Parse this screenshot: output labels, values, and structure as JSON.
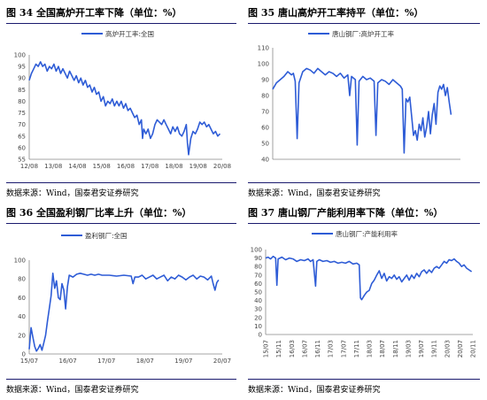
{
  "charts": [
    {
      "title": "图 34  全国高炉开工率下降（单位：%）",
      "source": "数据来源：Wind，国泰君安证券研究",
      "chart_data": {
        "type": "line",
        "series": [
          {
            "name": "高炉开工率:全国",
            "color": "#2e5cd6"
          }
        ],
        "x_ticks": [
          "12/08",
          "13/08",
          "14/08",
          "15/08",
          "16/08",
          "17/08",
          "18/08",
          "19/08",
          "20/08"
        ],
        "y_ticks": [
          55,
          60,
          65,
          70,
          75,
          80,
          85,
          90,
          95,
          100
        ],
        "ylim": [
          55,
          100
        ],
        "xlim": [
          0,
          8.6
        ],
        "points": [
          [
            0,
            89
          ],
          [
            0.1,
            92
          ],
          [
            0.2,
            94
          ],
          [
            0.3,
            96
          ],
          [
            0.4,
            95
          ],
          [
            0.5,
            97
          ],
          [
            0.6,
            95
          ],
          [
            0.7,
            96
          ],
          [
            0.8,
            93
          ],
          [
            0.9,
            95
          ],
          [
            1.0,
            94
          ],
          [
            1.1,
            96
          ],
          [
            1.2,
            93
          ],
          [
            1.3,
            95
          ],
          [
            1.4,
            92
          ],
          [
            1.5,
            94
          ],
          [
            1.6,
            92
          ],
          [
            1.7,
            90
          ],
          [
            1.8,
            93
          ],
          [
            1.9,
            91
          ],
          [
            2.0,
            89
          ],
          [
            2.1,
            91
          ],
          [
            2.2,
            88
          ],
          [
            2.3,
            90
          ],
          [
            2.4,
            87
          ],
          [
            2.5,
            89
          ],
          [
            2.6,
            86
          ],
          [
            2.7,
            87
          ],
          [
            2.8,
            84
          ],
          [
            2.9,
            86
          ],
          [
            3.0,
            83
          ],
          [
            3.1,
            84
          ],
          [
            3.2,
            80
          ],
          [
            3.3,
            82
          ],
          [
            3.4,
            78
          ],
          [
            3.5,
            80
          ],
          [
            3.6,
            79
          ],
          [
            3.7,
            81
          ],
          [
            3.8,
            78
          ],
          [
            3.9,
            80
          ],
          [
            4.0,
            78
          ],
          [
            4.1,
            80
          ],
          [
            4.2,
            77
          ],
          [
            4.3,
            79
          ],
          [
            4.4,
            76
          ],
          [
            4.5,
            77
          ],
          [
            4.6,
            75
          ],
          [
            4.7,
            73
          ],
          [
            4.8,
            74
          ],
          [
            4.9,
            70
          ],
          [
            5.0,
            72
          ],
          [
            5.05,
            64
          ],
          [
            5.1,
            68
          ],
          [
            5.2,
            66
          ],
          [
            5.3,
            68
          ],
          [
            5.4,
            64
          ],
          [
            5.5,
            66
          ],
          [
            5.6,
            70
          ],
          [
            5.7,
            72
          ],
          [
            5.8,
            71
          ],
          [
            5.9,
            70
          ],
          [
            6.0,
            72
          ],
          [
            6.1,
            70
          ],
          [
            6.2,
            68
          ],
          [
            6.3,
            66
          ],
          [
            6.4,
            69
          ],
          [
            6.5,
            67
          ],
          [
            6.6,
            69
          ],
          [
            6.7,
            66
          ],
          [
            6.8,
            65
          ],
          [
            6.9,
            67
          ],
          [
            7.0,
            70
          ],
          [
            7.05,
            62
          ],
          [
            7.1,
            57
          ],
          [
            7.2,
            64
          ],
          [
            7.3,
            67
          ],
          [
            7.4,
            66
          ],
          [
            7.5,
            68
          ],
          [
            7.6,
            71
          ],
          [
            7.7,
            70
          ],
          [
            7.8,
            71
          ],
          [
            7.9,
            69
          ],
          [
            8.0,
            70
          ],
          [
            8.1,
            68
          ],
          [
            8.2,
            66
          ],
          [
            8.3,
            67
          ],
          [
            8.4,
            65
          ],
          [
            8.5,
            66
          ]
        ]
      }
    },
    {
      "title": "图 35  唐山高炉开工率持平（单位：%）",
      "source": "数据来源：Wind，国泰君安证券研究",
      "chart_data": {
        "type": "line",
        "series": [
          {
            "name": "唐山钢厂:高炉开工率",
            "color": "#2e5cd6"
          }
        ],
        "x_ticks": [],
        "y_ticks": [
          40,
          50,
          60,
          70,
          80,
          90,
          100,
          110
        ],
        "ylim": [
          40,
          110
        ],
        "xlim": [
          0,
          10
        ],
        "points": [
          [
            0,
            84
          ],
          [
            0.2,
            88
          ],
          [
            0.4,
            90
          ],
          [
            0.6,
            92
          ],
          [
            0.8,
            95
          ],
          [
            1.0,
            93
          ],
          [
            1.1,
            94
          ],
          [
            1.2,
            89
          ],
          [
            1.3,
            53
          ],
          [
            1.4,
            88
          ],
          [
            1.6,
            95
          ],
          [
            1.8,
            97
          ],
          [
            2.0,
            96
          ],
          [
            2.2,
            94
          ],
          [
            2.4,
            97
          ],
          [
            2.6,
            95
          ],
          [
            2.8,
            93
          ],
          [
            3.0,
            95
          ],
          [
            3.2,
            94
          ],
          [
            3.4,
            92
          ],
          [
            3.6,
            94
          ],
          [
            3.8,
            91
          ],
          [
            4.0,
            93
          ],
          [
            4.1,
            80
          ],
          [
            4.2,
            92
          ],
          [
            4.4,
            90
          ],
          [
            4.5,
            49
          ],
          [
            4.6,
            89
          ],
          [
            4.8,
            92
          ],
          [
            5.0,
            90
          ],
          [
            5.2,
            91
          ],
          [
            5.4,
            89
          ],
          [
            5.5,
            55
          ],
          [
            5.6,
            88
          ],
          [
            5.8,
            90
          ],
          [
            6.0,
            89
          ],
          [
            6.2,
            87
          ],
          [
            6.4,
            90
          ],
          [
            6.6,
            88
          ],
          [
            6.8,
            86
          ],
          [
            6.9,
            84
          ],
          [
            7.0,
            44
          ],
          [
            7.1,
            78
          ],
          [
            7.2,
            76
          ],
          [
            7.3,
            79
          ],
          [
            7.5,
            55
          ],
          [
            7.6,
            58
          ],
          [
            7.7,
            52
          ],
          [
            7.8,
            62
          ],
          [
            7.9,
            58
          ],
          [
            8.0,
            66
          ],
          [
            8.1,
            54
          ],
          [
            8.2,
            60
          ],
          [
            8.3,
            70
          ],
          [
            8.4,
            56
          ],
          [
            8.5,
            68
          ],
          [
            8.6,
            75
          ],
          [
            8.7,
            62
          ],
          [
            8.8,
            82
          ],
          [
            8.9,
            86
          ],
          [
            9.0,
            84
          ],
          [
            9.1,
            87
          ],
          [
            9.2,
            80
          ],
          [
            9.3,
            85
          ],
          [
            9.4,
            76
          ],
          [
            9.5,
            68
          ]
        ]
      }
    },
    {
      "title": "图 36  全国盈利钢厂比率上升（单位：%）",
      "source": "数据来源：Wind，国泰君安证券研究",
      "chart_data": {
        "type": "line",
        "series": [
          {
            "name": "盈利钢厂:全国",
            "color": "#2e5cd6"
          }
        ],
        "x_ticks": [
          "15/07",
          "16/07",
          "17/07",
          "18/07",
          "19/07",
          "20/07"
        ],
        "y_ticks": [
          0,
          20,
          40,
          60,
          80,
          100
        ],
        "ylim": [
          0,
          100
        ],
        "xlim": [
          0,
          5.3
        ],
        "points": [
          [
            0,
            5
          ],
          [
            0.05,
            28
          ],
          [
            0.1,
            18
          ],
          [
            0.15,
            8
          ],
          [
            0.2,
            3
          ],
          [
            0.25,
            6
          ],
          [
            0.3,
            10
          ],
          [
            0.35,
            4
          ],
          [
            0.4,
            12
          ],
          [
            0.45,
            20
          ],
          [
            0.5,
            35
          ],
          [
            0.55,
            48
          ],
          [
            0.6,
            62
          ],
          [
            0.65,
            86
          ],
          [
            0.7,
            70
          ],
          [
            0.75,
            78
          ],
          [
            0.8,
            60
          ],
          [
            0.85,
            58
          ],
          [
            0.9,
            75
          ],
          [
            0.95,
            68
          ],
          [
            1.0,
            48
          ],
          [
            1.05,
            72
          ],
          [
            1.1,
            84
          ],
          [
            1.2,
            82
          ],
          [
            1.3,
            85
          ],
          [
            1.4,
            86
          ],
          [
            1.5,
            85
          ],
          [
            1.6,
            84
          ],
          [
            1.7,
            85
          ],
          [
            1.8,
            84
          ],
          [
            1.9,
            85
          ],
          [
            2.0,
            84
          ],
          [
            2.2,
            84
          ],
          [
            2.4,
            83
          ],
          [
            2.6,
            84
          ],
          [
            2.8,
            83
          ],
          [
            2.85,
            75
          ],
          [
            2.9,
            82
          ],
          [
            3.0,
            82
          ],
          [
            3.1,
            84
          ],
          [
            3.2,
            80
          ],
          [
            3.3,
            82
          ],
          [
            3.4,
            84
          ],
          [
            3.5,
            80
          ],
          [
            3.6,
            82
          ],
          [
            3.7,
            84
          ],
          [
            3.8,
            78
          ],
          [
            3.9,
            82
          ],
          [
            4.0,
            80
          ],
          [
            4.1,
            84
          ],
          [
            4.2,
            82
          ],
          [
            4.3,
            79
          ],
          [
            4.4,
            82
          ],
          [
            4.5,
            84
          ],
          [
            4.6,
            80
          ],
          [
            4.7,
            83
          ],
          [
            4.8,
            82
          ],
          [
            4.9,
            79
          ],
          [
            5.0,
            83
          ],
          [
            5.05,
            75
          ],
          [
            5.1,
            68
          ],
          [
            5.15,
            76
          ],
          [
            5.2,
            79
          ]
        ]
      }
    },
    {
      "title": "图 37  唐山钢厂产能利用率下降（单位：%）",
      "source": "数据来源：Wind，国泰君安证券研究",
      "chart_data": {
        "type": "line",
        "series": [
          {
            "name": "唐山钢厂:产能利用率",
            "color": "#2e5cd6"
          }
        ],
        "x_ticks": [
          "15/07",
          "15/11",
          "16/03",
          "16/07",
          "16/11",
          "17/03",
          "17/07",
          "17/11",
          "18/03",
          "18/07",
          "18/11",
          "19/03",
          "19/07",
          "19/11",
          "20/03",
          "20/07",
          "20/11"
        ],
        "y_ticks": [
          0,
          10,
          20,
          30,
          40,
          50,
          60,
          70,
          80,
          90,
          100
        ],
        "ylim": [
          0,
          100
        ],
        "xlim": [
          0,
          16.6
        ],
        "points": [
          [
            0,
            90
          ],
          [
            0.2,
            91
          ],
          [
            0.4,
            89
          ],
          [
            0.6,
            92
          ],
          [
            0.8,
            90
          ],
          [
            0.9,
            58
          ],
          [
            1.0,
            89
          ],
          [
            1.3,
            91
          ],
          [
            1.6,
            88
          ],
          [
            1.9,
            90
          ],
          [
            2.2,
            89
          ],
          [
            2.5,
            86
          ],
          [
            2.8,
            88
          ],
          [
            3.1,
            87
          ],
          [
            3.4,
            89
          ],
          [
            3.6,
            86
          ],
          [
            3.8,
            88
          ],
          [
            4.0,
            57
          ],
          [
            4.1,
            86
          ],
          [
            4.3,
            88
          ],
          [
            4.6,
            86
          ],
          [
            4.9,
            87
          ],
          [
            5.2,
            85
          ],
          [
            5.5,
            86
          ],
          [
            5.8,
            84
          ],
          [
            6.1,
            85
          ],
          [
            6.4,
            84
          ],
          [
            6.7,
            86
          ],
          [
            7.0,
            83
          ],
          [
            7.3,
            84
          ],
          [
            7.5,
            82
          ],
          [
            7.6,
            43
          ],
          [
            7.7,
            41
          ],
          [
            7.9,
            46
          ],
          [
            8.1,
            50
          ],
          [
            8.3,
            52
          ],
          [
            8.5,
            60
          ],
          [
            8.7,
            64
          ],
          [
            8.9,
            70
          ],
          [
            9.1,
            75
          ],
          [
            9.3,
            66
          ],
          [
            9.5,
            72
          ],
          [
            9.7,
            63
          ],
          [
            9.9,
            68
          ],
          [
            10.1,
            66
          ],
          [
            10.3,
            70
          ],
          [
            10.5,
            65
          ],
          [
            10.7,
            68
          ],
          [
            10.9,
            62
          ],
          [
            11.1,
            66
          ],
          [
            11.3,
            70
          ],
          [
            11.5,
            64
          ],
          [
            11.7,
            70
          ],
          [
            11.9,
            66
          ],
          [
            12.1,
            72
          ],
          [
            12.3,
            68
          ],
          [
            12.5,
            74
          ],
          [
            12.7,
            76
          ],
          [
            12.9,
            72
          ],
          [
            13.1,
            76
          ],
          [
            13.3,
            73
          ],
          [
            13.5,
            78
          ],
          [
            13.7,
            80
          ],
          [
            13.9,
            78
          ],
          [
            14.1,
            82
          ],
          [
            14.3,
            86
          ],
          [
            14.5,
            84
          ],
          [
            14.7,
            88
          ],
          [
            14.9,
            87
          ],
          [
            15.1,
            89
          ],
          [
            15.3,
            86
          ],
          [
            15.5,
            84
          ],
          [
            15.7,
            80
          ],
          [
            15.9,
            82
          ],
          [
            16.1,
            78
          ],
          [
            16.3,
            76
          ],
          [
            16.5,
            74
          ]
        ]
      }
    }
  ]
}
